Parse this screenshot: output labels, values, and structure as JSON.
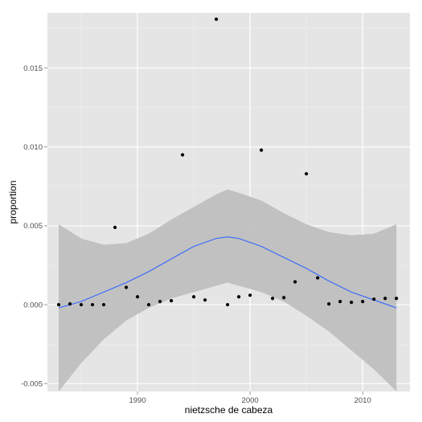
{
  "chart_data": {
    "type": "scatter",
    "xlabel": "nietzsche de cabeza",
    "ylabel": "proportion",
    "xlim": [
      1982,
      2014.2
    ],
    "ylim": [
      -0.0055,
      0.0185
    ],
    "x_ticks": [
      1990,
      2000,
      2010
    ],
    "x_tick_labels": [
      "1990",
      "2000",
      "2010"
    ],
    "y_ticks": [
      -0.005,
      0,
      0.005,
      0.01,
      0.015
    ],
    "y_tick_labels": [
      "-0.005",
      "0.000",
      "0.005",
      "0.010",
      "0.015"
    ],
    "grid": true,
    "series": [
      {
        "kind": "points",
        "color": "#000000",
        "x": [
          1983,
          1984,
          1985,
          1986,
          1987,
          1988,
          1989,
          1990,
          1991,
          1992,
          1993,
          1994,
          1995,
          1996,
          1997,
          1998,
          1999,
          2000,
          2001,
          2002,
          2003,
          2004,
          2005,
          2006,
          2007,
          2008,
          2009,
          2010,
          2011,
          2012,
          2013
        ],
        "y": [
          0.0,
          5e-05,
          0.0,
          0.0,
          0.0,
          0.0049,
          0.0011,
          0.0005,
          0.0,
          0.0002,
          0.00025,
          0.0095,
          0.0005,
          0.0003,
          0.0181,
          0.0,
          0.0005,
          0.0006,
          0.0098,
          0.0004,
          0.00045,
          0.00145,
          0.0083,
          0.0017,
          5e-05,
          0.0002,
          0.00015,
          0.0002,
          0.00035,
          0.0004,
          0.0004
        ]
      },
      {
        "kind": "smooth",
        "color": "#3366ff",
        "x": [
          1983,
          1985,
          1987,
          1989,
          1991,
          1993,
          1995,
          1997,
          1998,
          1999,
          2001,
          2003,
          2005,
          2007,
          2009,
          2011,
          2013
        ],
        "y": [
          -0.0002,
          0.0002,
          0.0008,
          0.0014,
          0.0021,
          0.0029,
          0.0037,
          0.0042,
          0.0043,
          0.0042,
          0.0037,
          0.003,
          0.0023,
          0.0015,
          0.0008,
          0.0003,
          -0.0002
        ]
      },
      {
        "kind": "confidence-band",
        "color": "#bdbdbd",
        "x": [
          1983,
          1985,
          1987,
          1989,
          1991,
          1993,
          1995,
          1997,
          1998,
          1999,
          2001,
          2003,
          2005,
          2007,
          2009,
          2011,
          2013
        ],
        "lower": [
          -0.0055,
          -0.0037,
          -0.0022,
          -0.001,
          -0.0002,
          0.0004,
          0.0008,
          0.0012,
          0.0014,
          0.0012,
          0.0008,
          0.0002,
          -0.0007,
          -0.0017,
          -0.0029,
          -0.0041,
          -0.0055
        ],
        "upper": [
          0.0051,
          0.0042,
          0.0038,
          0.0039,
          0.0045,
          0.0054,
          0.0062,
          0.007,
          0.0073,
          0.0071,
          0.0066,
          0.0058,
          0.0051,
          0.0046,
          0.0044,
          0.0045,
          0.0051
        ]
      }
    ]
  }
}
